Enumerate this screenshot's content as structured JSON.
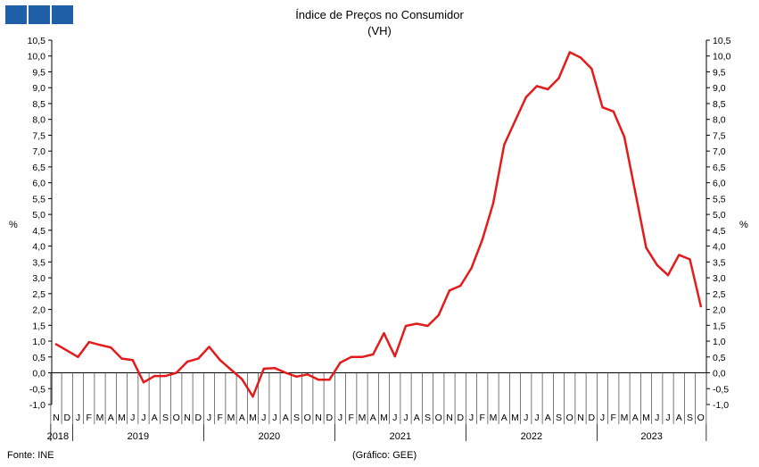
{
  "header": {
    "title": "Índice de Preços no Consumidor",
    "subtitle": "(VH)",
    "logo_icon": "ine-logo-blocks-icon"
  },
  "axis_unit": "%",
  "footer": {
    "source": "Fonte: INE",
    "credit": "(Gráfico: GEE)"
  },
  "colors": {
    "line": "#e31b1b",
    "logo": "#1f5fa8",
    "axis": "#000000"
  },
  "chart_data": {
    "type": "line",
    "title": "Índice de Preços no Consumidor",
    "subtitle": "(VH)",
    "ylabel": "%",
    "ylim": [
      -1.0,
      10.5
    ],
    "ytick_step": 0.5,
    "ytick_labels": [
      "-1,0",
      "-0,5",
      "0,0",
      "0,5",
      "1,0",
      "1,5",
      "2,0",
      "2,5",
      "3,0",
      "3,5",
      "4,0",
      "4,5",
      "5,0",
      "5,5",
      "6,0",
      "6,5",
      "7,0",
      "7,5",
      "8,0",
      "8,5",
      "9,0",
      "9,5",
      "10,0",
      "10,5"
    ],
    "grid": false,
    "dual_y_axis": true,
    "month_labels": [
      "N",
      "D",
      "J",
      "F",
      "M",
      "A",
      "M",
      "J",
      "J",
      "A",
      "S",
      "O",
      "N",
      "D",
      "J",
      "F",
      "M",
      "A",
      "M",
      "J",
      "J",
      "A",
      "S",
      "O",
      "N",
      "D",
      "J",
      "F",
      "M",
      "A",
      "M",
      "J",
      "J",
      "A",
      "S",
      "O",
      "N",
      "D",
      "J",
      "F",
      "M",
      "A",
      "M",
      "J",
      "J",
      "A",
      "S",
      "O",
      "N",
      "D",
      "J",
      "F",
      "M",
      "A",
      "M",
      "J",
      "J",
      "A",
      "S",
      "O"
    ],
    "years": [
      {
        "label": "2018",
        "start": 0,
        "count": 2
      },
      {
        "label": "2019",
        "start": 2,
        "count": 12
      },
      {
        "label": "2020",
        "start": 14,
        "count": 12
      },
      {
        "label": "2021",
        "start": 26,
        "count": 12
      },
      {
        "label": "2022",
        "start": 38,
        "count": 12
      },
      {
        "label": "2023",
        "start": 50,
        "count": 10
      }
    ],
    "series": [
      {
        "values": [
          0.9,
          0.7,
          0.5,
          0.97,
          0.88,
          0.8,
          0.45,
          0.4,
          -0.3,
          -0.1,
          -0.1,
          0.0,
          0.35,
          0.45,
          0.82,
          0.4,
          0.1,
          -0.2,
          -0.75,
          0.13,
          0.15,
          0.0,
          -0.12,
          -0.05,
          -0.22,
          -0.22,
          0.32,
          0.5,
          0.5,
          0.58,
          1.25,
          0.52,
          1.48,
          1.55,
          1.48,
          1.82,
          2.6,
          2.75,
          3.3,
          4.2,
          5.35,
          7.2,
          7.95,
          8.7,
          9.05,
          8.95,
          9.3,
          10.12,
          9.95,
          9.6,
          8.38,
          8.25,
          7.45,
          5.7,
          3.95,
          3.4,
          3.08,
          3.72,
          3.58,
          2.1
        ]
      }
    ]
  }
}
